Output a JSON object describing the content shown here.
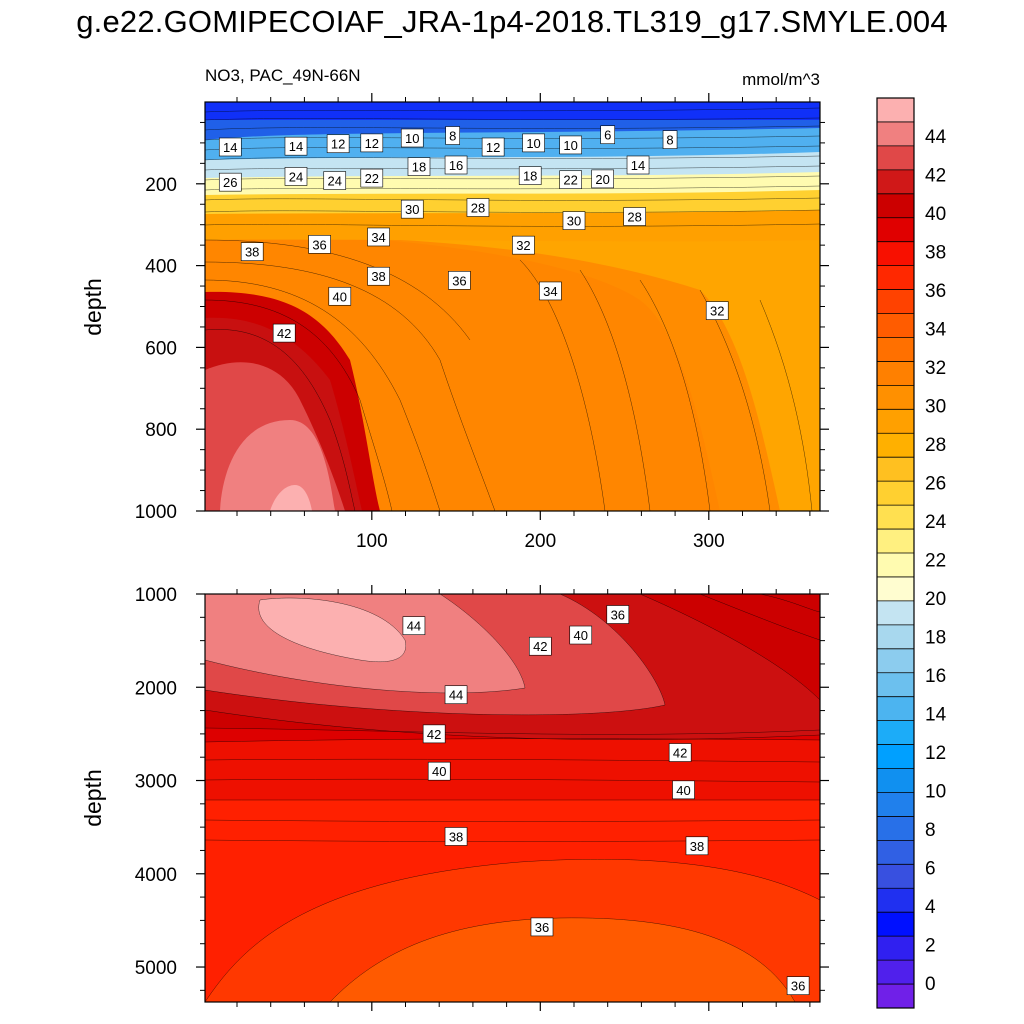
{
  "title": "g.e22.GOMIPECOIAF_JRA-1p4-2018.TL319_g17.SMYLE.004",
  "chart_data": [
    {
      "type": "heatmap",
      "panel": "upper",
      "variable_label": "NO3, PAC_49N-66N",
      "units_label": "mmol/m^3",
      "xlabel": "",
      "ylabel": "depth",
      "xlim": [
        1,
        366
      ],
      "ylim": [
        0,
        1000
      ],
      "y_inverted": true,
      "x_ticks": [
        100,
        200,
        300
      ],
      "y_ticks": [
        200,
        400,
        600,
        800,
        1000
      ],
      "contour_labels": [
        {
          "x": 16,
          "y": 110,
          "v": "14"
        },
        {
          "x": 55,
          "y": 108,
          "v": "14"
        },
        {
          "x": 80,
          "y": 102,
          "v": "12"
        },
        {
          "x": 100,
          "y": 100,
          "v": "12"
        },
        {
          "x": 124,
          "y": 88,
          "v": "10"
        },
        {
          "x": 148,
          "y": 82,
          "v": "8"
        },
        {
          "x": 172,
          "y": 110,
          "v": "12"
        },
        {
          "x": 196,
          "y": 100,
          "v": "10"
        },
        {
          "x": 218,
          "y": 105,
          "v": "10"
        },
        {
          "x": 240,
          "y": 80,
          "v": "6"
        },
        {
          "x": 277,
          "y": 92,
          "v": "8"
        },
        {
          "x": 16,
          "y": 196,
          "v": "26"
        },
        {
          "x": 55,
          "y": 182,
          "v": "24"
        },
        {
          "x": 78,
          "y": 192,
          "v": "24"
        },
        {
          "x": 100,
          "y": 186,
          "v": "22"
        },
        {
          "x": 128,
          "y": 158,
          "v": "18"
        },
        {
          "x": 150,
          "y": 154,
          "v": "16"
        },
        {
          "x": 194,
          "y": 180,
          "v": "18"
        },
        {
          "x": 218,
          "y": 190,
          "v": "22"
        },
        {
          "x": 237,
          "y": 188,
          "v": "20"
        },
        {
          "x": 258,
          "y": 154,
          "v": "14"
        },
        {
          "x": 124,
          "y": 262,
          "v": "30"
        },
        {
          "x": 163,
          "y": 258,
          "v": "28"
        },
        {
          "x": 220,
          "y": 290,
          "v": "30"
        },
        {
          "x": 256,
          "y": 280,
          "v": "28"
        },
        {
          "x": 29,
          "y": 366,
          "v": "38"
        },
        {
          "x": 69,
          "y": 348,
          "v": "36"
        },
        {
          "x": 104,
          "y": 330,
          "v": "34"
        },
        {
          "x": 190,
          "y": 350,
          "v": "32"
        },
        {
          "x": 104,
          "y": 426,
          "v": "38"
        },
        {
          "x": 152,
          "y": 436,
          "v": "36"
        },
        {
          "x": 206,
          "y": 462,
          "v": "34"
        },
        {
          "x": 81,
          "y": 475,
          "v": "40"
        },
        {
          "x": 305,
          "y": 510,
          "v": "32"
        },
        {
          "x": 48,
          "y": 565,
          "v": "42"
        }
      ]
    },
    {
      "type": "heatmap",
      "panel": "lower",
      "xlabel": "",
      "ylabel": "depth",
      "xlim": [
        1,
        366
      ],
      "ylim": [
        1000,
        5375
      ],
      "y_inverted": true,
      "x_ticks": [
        100,
        200,
        300
      ],
      "y_ticks": [
        1000,
        2000,
        3000,
        4000,
        5000
      ],
      "contour_labels": [
        {
          "x": 125,
          "y": 1340,
          "v": "44"
        },
        {
          "x": 150,
          "y": 2080,
          "v": "44"
        },
        {
          "x": 200,
          "y": 1560,
          "v": "42"
        },
        {
          "x": 224,
          "y": 1440,
          "v": "40"
        },
        {
          "x": 246,
          "y": 1220,
          "v": "36"
        },
        {
          "x": 137,
          "y": 2500,
          "v": "42"
        },
        {
          "x": 283,
          "y": 2700,
          "v": "42"
        },
        {
          "x": 140,
          "y": 2900,
          "v": "40"
        },
        {
          "x": 285,
          "y": 3100,
          "v": "40"
        },
        {
          "x": 150,
          "y": 3600,
          "v": "38"
        },
        {
          "x": 293,
          "y": 3700,
          "v": "38"
        },
        {
          "x": 201,
          "y": 4570,
          "v": "36"
        },
        {
          "x": 353,
          "y": 5200,
          "v": "36"
        }
      ]
    }
  ],
  "colorbar": {
    "labels": [
      "44",
      "42",
      "40",
      "38",
      "36",
      "34",
      "32",
      "30",
      "28",
      "26",
      "24",
      "22",
      "20",
      "18",
      "16",
      "14",
      "12",
      "10",
      "8",
      "6",
      "4",
      "2",
      "0"
    ],
    "colors": [
      "#fcb0b0",
      "#f08080",
      "#e04848",
      "#d01818",
      "#cc0000",
      "#e00000",
      "#f81000",
      "#ff2800",
      "#ff4200",
      "#ff5c00",
      "#ff7000",
      "#ff8000",
      "#ff9000",
      "#ffa000",
      "#ffb000",
      "#ffc020",
      "#ffd030",
      "#ffe050",
      "#fff080",
      "#fffbb0",
      "#fffdd0",
      "#c4e4f2",
      "#a8d8ee",
      "#8cccee",
      "#6cc0ee",
      "#4cb4f0",
      "#1cacf8",
      "#00a0ff",
      "#1090f0",
      "#2080ec",
      "#2870e8",
      "#3060e4",
      "#3850e0",
      "#2030f0",
      "#0010ff",
      "#3020f0",
      "#5020ec",
      "#7020e8"
    ]
  }
}
